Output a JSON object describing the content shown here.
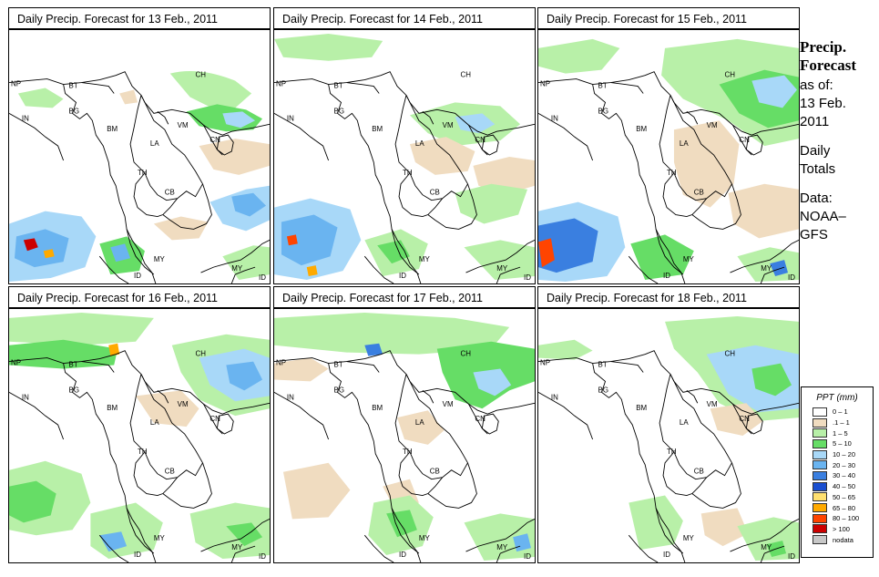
{
  "panels": [
    {
      "title": "Daily Precip. Forecast for  13 Feb., 2011"
    },
    {
      "title": "Daily Precip. Forecast for  14 Feb., 2011"
    },
    {
      "title": "Daily Precip. Forecast for  15 Feb., 2011"
    },
    {
      "title": "Daily Precip. Forecast for  16 Feb., 2011"
    },
    {
      "title": "Daily Precip. Forecast for  17 Feb., 2011"
    },
    {
      "title": "Daily Precip. Forecast for  18 Feb., 2011"
    }
  ],
  "map_labels": [
    "NP",
    "BT",
    "BG",
    "IN",
    "BM",
    "CH",
    "VM",
    "LA",
    "TH",
    "CB",
    "CN",
    "MY",
    "ID"
  ],
  "sidebar": {
    "heading_1": "Precip.",
    "heading_2": "Forecast",
    "line_1": "as of:",
    "line_2": "13 Feb.",
    "line_3": "2011",
    "line_4": "Daily",
    "line_5": "Totals",
    "line_6": "Data:",
    "line_7": "NOAA–",
    "line_8": "GFS"
  },
  "legend": {
    "title": "PPT (mm)",
    "items": [
      {
        "label": "0 – 1",
        "color": "#ffffff"
      },
      {
        "label": ".1 – 1",
        "color": "#f0dcc0"
      },
      {
        "label": "1 – 5",
        "color": "#b8f0a8"
      },
      {
        "label": "5 – 10",
        "color": "#66dd66"
      },
      {
        "label": "10 – 20",
        "color": "#a8d8f8"
      },
      {
        "label": "20 – 30",
        "color": "#6ab4f0"
      },
      {
        "label": "30 – 40",
        "color": "#3a7fe0"
      },
      {
        "label": "40 – 50",
        "color": "#1a4fd0"
      },
      {
        "label": "50 – 65",
        "color": "#ffe070"
      },
      {
        "label": "65 – 80",
        "color": "#ffaa00"
      },
      {
        "label": "80 – 100",
        "color": "#ff4400"
      },
      {
        "label": "> 100",
        "color": "#cc0000"
      },
      {
        "label": "nodata",
        "color": "#c8c8c8"
      }
    ]
  }
}
